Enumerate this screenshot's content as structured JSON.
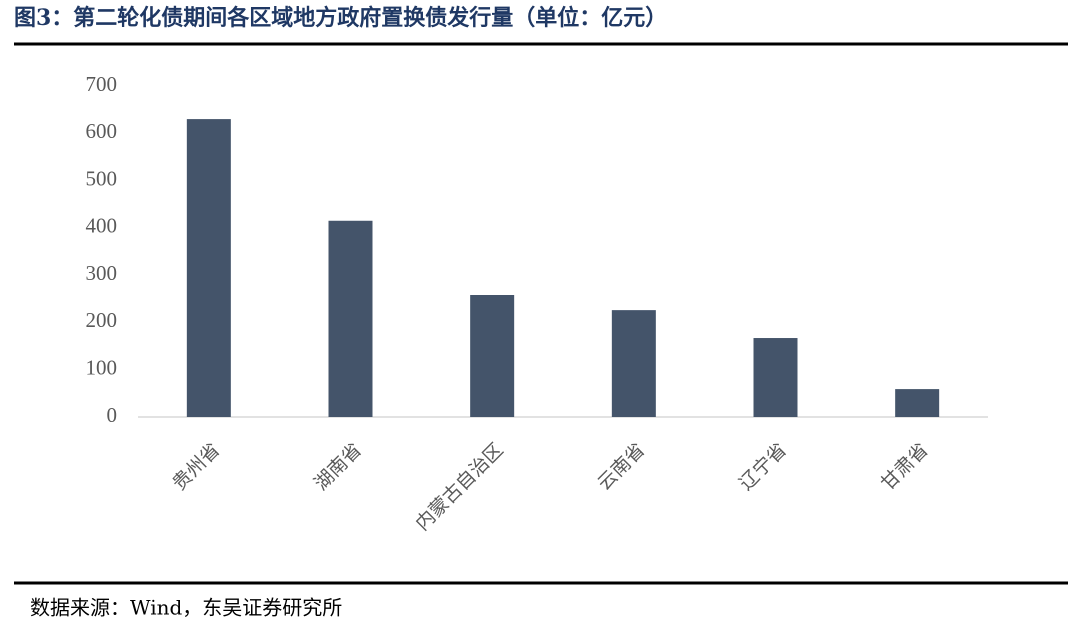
{
  "chart_data": {
    "type": "bar",
    "title": "图3：第二轮化债期间各区域地方政府置换债发行量（单位：亿元）",
    "source": "数据来源：Wind，东吴证券研究所",
    "categories": [
      "贵州省",
      "湖南省",
      "内蒙古自治区",
      "云南省",
      "辽宁省",
      "甘肃省"
    ],
    "values": [
      630,
      415,
      258,
      226,
      167,
      59
    ],
    "color": "#44546a",
    "ylim": [
      0,
      700
    ],
    "yticks": [
      0,
      100,
      200,
      300,
      400,
      500,
      600,
      700
    ],
    "grid": false
  }
}
